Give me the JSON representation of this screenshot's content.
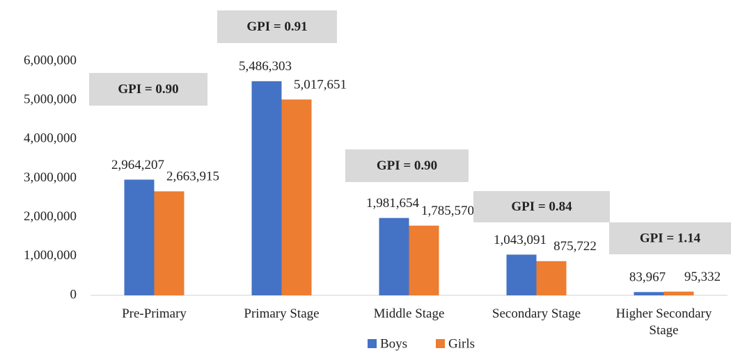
{
  "chart_data": {
    "type": "bar",
    "categories": [
      "Pre-Primary",
      "Primary Stage",
      "Middle Stage",
      "Secondary Stage",
      "Higher Secondary Stage"
    ],
    "series": [
      {
        "name": "Boys",
        "color": "#4472c4",
        "values": [
          2964207,
          5486303,
          1981654,
          1043091,
          83967
        ],
        "value_labels": [
          "2,964,207",
          "5,486,303",
          "1,981,654",
          "1,043,091",
          "83,967"
        ]
      },
      {
        "name": "Girls",
        "color": "#ed7d31",
        "values": [
          2663915,
          5017651,
          1785570,
          875722,
          95332
        ],
        "value_labels": [
          "2,663,915",
          "5,017,651",
          "1,785,570",
          "875,722",
          "95,332"
        ]
      }
    ],
    "annotations": [
      "GPI = 0.90",
      "GPI = 0.91",
      "GPI = 0.90",
      "GPI = 0.84",
      "GPI = 1.14"
    ],
    "ylim": [
      0,
      6000000
    ],
    "yticks": [
      0,
      {
        "value": 1000000,
        "label": "1,000,000"
      },
      {
        "value": 2000000,
        "label": "2,000,000"
      },
      {
        "value": 3000000,
        "label": "3,000,000"
      },
      {
        "value": 4000000,
        "label": "4,000,000"
      },
      {
        "value": 5000000,
        "label": "5,000,000"
      },
      {
        "value": 6000000,
        "label": "6,000,000"
      }
    ],
    "legend": "bottom"
  }
}
